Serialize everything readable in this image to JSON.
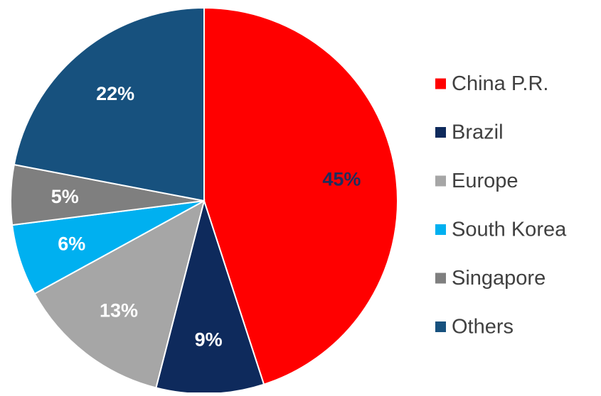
{
  "chart_data": {
    "type": "pie",
    "title": "",
    "start_angle_deg": 0,
    "direction": "clockwise",
    "legend_position": "right",
    "slices": [
      {
        "label": "China P.R.",
        "value": 45,
        "display": "45%",
        "color": "#ff0000",
        "label_color": "#1f2d5c"
      },
      {
        "label": "Brazil",
        "value": 9,
        "display": "9%",
        "color": "#0e2a5c",
        "label_color": "#ffffff"
      },
      {
        "label": "Europe",
        "value": 13,
        "display": "13%",
        "color": "#a6a6a6",
        "label_color": "#ffffff"
      },
      {
        "label": "South Korea",
        "value": 6,
        "display": "6%",
        "color": "#00b0f0",
        "label_color": "#ffffff"
      },
      {
        "label": "Singapore",
        "value": 5,
        "display": "5%",
        "color": "#7f7f7f",
        "label_color": "#ffffff"
      },
      {
        "label": "Others",
        "value": 22,
        "display": "22%",
        "color": "#17517e",
        "label_color": "#ffffff"
      }
    ]
  }
}
